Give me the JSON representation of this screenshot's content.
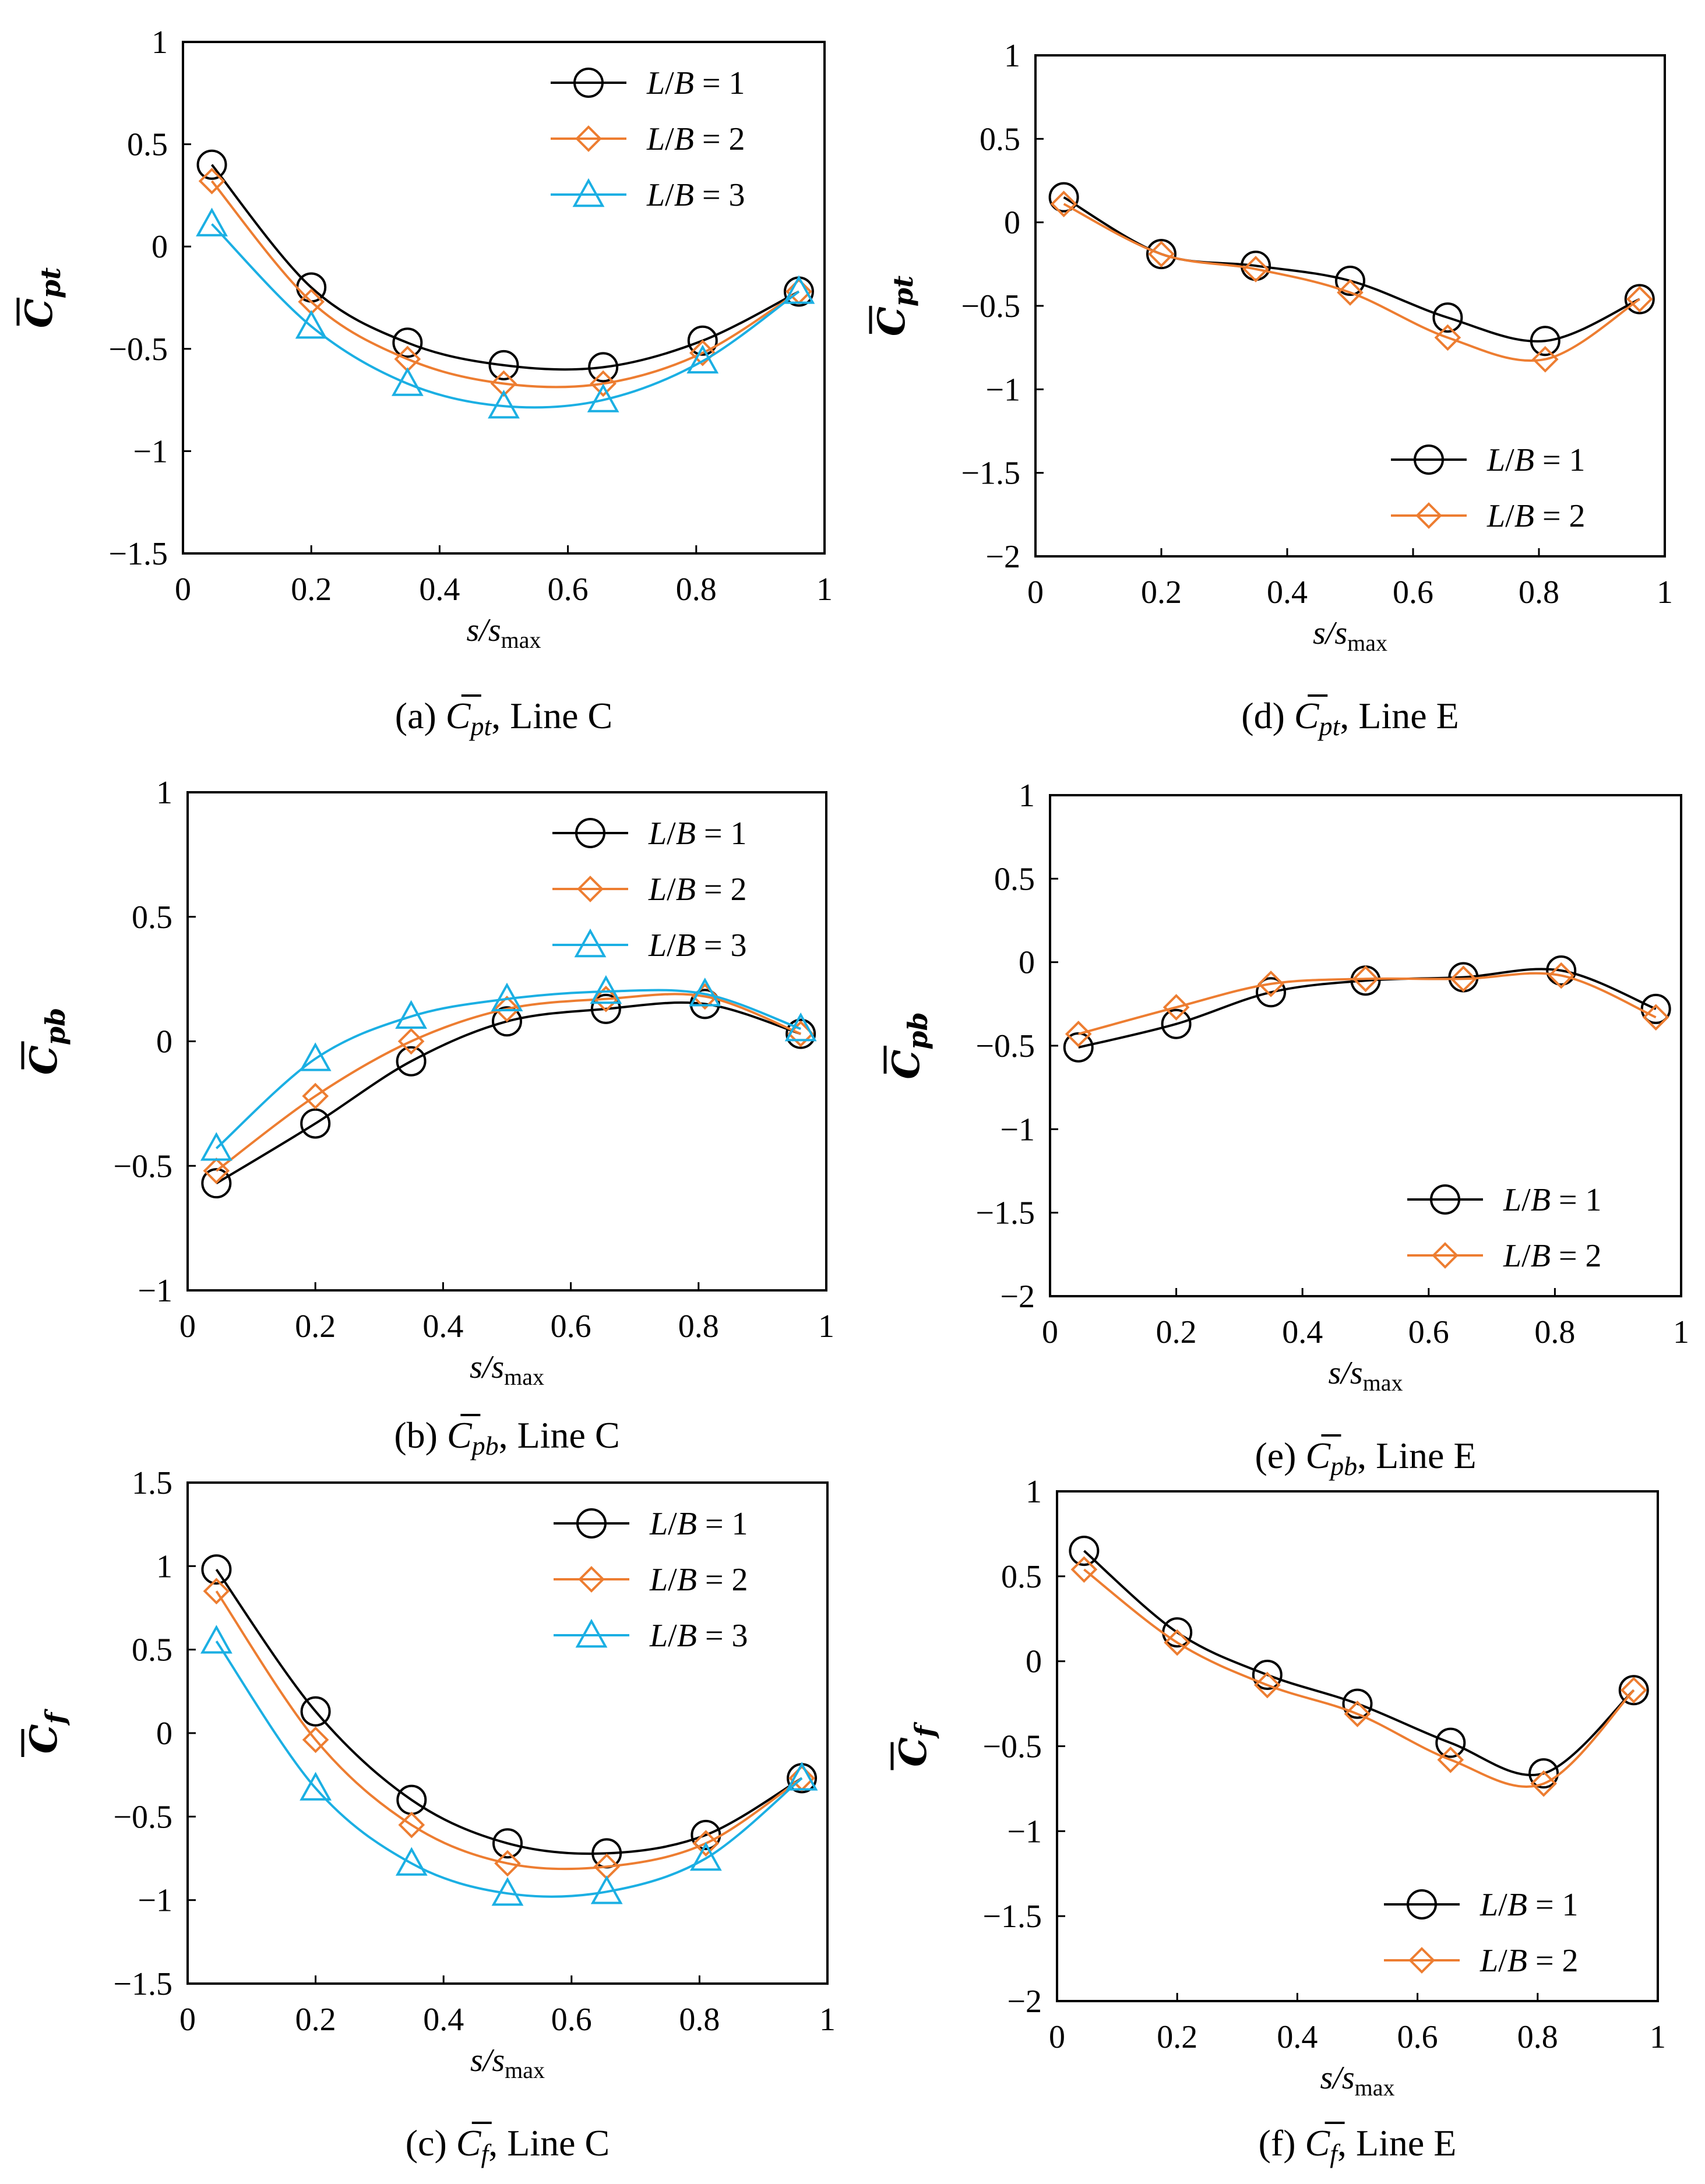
{
  "colors": {
    "lb1": "#000000",
    "lb2": "#ED7D31",
    "lb3": "#1BAFE3"
  },
  "chart_data": [
    {
      "id": "a",
      "type": "line",
      "caption": {
        "prefix": "(a) ",
        "symbol": "C",
        "sub": "pt",
        "suffix": ", Line C"
      },
      "ylabel": {
        "symbol": "C",
        "sub": "pt"
      },
      "xlabel": {
        "main": "s/s",
        "sub": "max"
      },
      "xlim": [
        0,
        1
      ],
      "ylim": [
        -1.5,
        1
      ],
      "xticks": [
        0,
        0.2,
        0.4,
        0.6,
        0.8,
        1
      ],
      "xtick_labels": [
        "0",
        "0.2",
        "0.4",
        "0.6",
        "0.8",
        "1"
      ],
      "yticks": [
        1,
        0.5,
        0,
        -0.5,
        -1,
        -1.5
      ],
      "ytick_labels": [
        "1",
        "0.5",
        "0",
        "−0.5",
        "−1",
        "−1.5"
      ],
      "legend": "top-right",
      "x": [
        0.045,
        0.2,
        0.35,
        0.5,
        0.655,
        0.81,
        0.96
      ],
      "series": [
        {
          "name": "L/B = 1",
          "color": "lb1",
          "marker": "circle",
          "values": [
            0.4,
            -0.2,
            -0.47,
            -0.58,
            -0.59,
            -0.46,
            -0.22
          ]
        },
        {
          "name": "L/B = 2",
          "color": "lb2",
          "marker": "diamond",
          "values": [
            0.32,
            -0.27,
            -0.55,
            -0.67,
            -0.67,
            -0.52,
            -0.22
          ]
        },
        {
          "name": "L/B = 3",
          "color": "lb3",
          "marker": "triangle",
          "values": [
            0.11,
            -0.39,
            -0.67,
            -0.78,
            -0.75,
            -0.56,
            -0.22
          ]
        }
      ]
    },
    {
      "id": "b",
      "type": "line",
      "caption": {
        "prefix": "(b) ",
        "symbol": "C",
        "sub": "pb",
        "suffix": ", Line C"
      },
      "ylabel": {
        "symbol": "C",
        "sub": "pb"
      },
      "xlabel": {
        "main": "s/s",
        "sub": "max"
      },
      "xlim": [
        0,
        1
      ],
      "ylim": [
        -1,
        1
      ],
      "xticks": [
        0,
        0.2,
        0.4,
        0.6,
        0.8,
        1
      ],
      "xtick_labels": [
        "0",
        "0.2",
        "0.4",
        "0.6",
        "0.8",
        "1"
      ],
      "yticks": [
        1,
        0.5,
        0,
        -0.5,
        -1
      ],
      "ytick_labels": [
        "1",
        "0.5",
        "0",
        "−0.5",
        "−1"
      ],
      "legend": "top-right",
      "x": [
        0.045,
        0.2,
        0.35,
        0.5,
        0.655,
        0.81,
        0.96
      ],
      "series": [
        {
          "name": "L/B = 1",
          "color": "lb1",
          "marker": "circle",
          "values": [
            -0.57,
            -0.33,
            -0.08,
            0.08,
            0.13,
            0.15,
            0.03
          ]
        },
        {
          "name": "L/B = 2",
          "color": "lb2",
          "marker": "diamond",
          "values": [
            -0.52,
            -0.22,
            0.0,
            0.13,
            0.17,
            0.18,
            0.03
          ]
        },
        {
          "name": "L/B = 3",
          "color": "lb3",
          "marker": "triangle",
          "values": [
            -0.43,
            -0.07,
            0.1,
            0.17,
            0.2,
            0.19,
            0.05
          ]
        }
      ]
    },
    {
      "id": "c",
      "type": "line",
      "caption": {
        "prefix": "(c) ",
        "symbol": "C",
        "sub": "f",
        "suffix": ", Line C"
      },
      "ylabel": {
        "symbol": "C",
        "sub": "f"
      },
      "xlabel": {
        "main": "s/s",
        "sub": "max"
      },
      "xlim": [
        0,
        1
      ],
      "ylim": [
        -1.5,
        1.5
      ],
      "xticks": [
        0,
        0.2,
        0.4,
        0.6,
        0.8,
        1
      ],
      "xtick_labels": [
        "0",
        "0.2",
        "0.4",
        "0.6",
        "0.8",
        "1"
      ],
      "yticks": [
        1.5,
        1,
        0.5,
        0,
        -0.5,
        -1,
        -1.5
      ],
      "ytick_labels": [
        "1.5",
        "1",
        "0.5",
        "0",
        "−0.5",
        "−1",
        "−1.5"
      ],
      "legend": "top-right",
      "x": [
        0.045,
        0.2,
        0.35,
        0.5,
        0.655,
        0.81,
        0.96
      ],
      "series": [
        {
          "name": "L/B = 1",
          "color": "lb1",
          "marker": "circle",
          "values": [
            0.98,
            0.13,
            -0.4,
            -0.66,
            -0.72,
            -0.61,
            -0.27
          ]
        },
        {
          "name": "L/B = 2",
          "color": "lb2",
          "marker": "diamond",
          "values": [
            0.85,
            -0.04,
            -0.55,
            -0.78,
            -0.8,
            -0.66,
            -0.27
          ]
        },
        {
          "name": "L/B = 3",
          "color": "lb3",
          "marker": "triangle",
          "values": [
            0.55,
            -0.33,
            -0.78,
            -0.96,
            -0.95,
            -0.75,
            -0.27
          ]
        }
      ]
    },
    {
      "id": "d",
      "type": "line",
      "caption": {
        "prefix": "(d) ",
        "symbol": "C",
        "sub": "pt",
        "suffix": ", Line E"
      },
      "ylabel": {
        "symbol": "C",
        "sub": "pt"
      },
      "xlabel": {
        "main": "s/s",
        "sub": "max"
      },
      "xlim": [
        0,
        1
      ],
      "ylim": [
        -2,
        1
      ],
      "xticks": [
        0,
        0.2,
        0.4,
        0.6,
        0.8,
        1
      ],
      "xtick_labels": [
        "0",
        "0.2",
        "0.4",
        "0.6",
        "0.8",
        "1"
      ],
      "yticks": [
        1,
        0.5,
        0,
        -0.5,
        -1,
        -1.5,
        -2
      ],
      "ytick_labels": [
        "1",
        "0.5",
        "0",
        "−0.5",
        "−1",
        "−1.5",
        "−2"
      ],
      "legend": "bottom-right",
      "x": [
        0.045,
        0.2,
        0.35,
        0.5,
        0.655,
        0.81,
        0.96
      ],
      "series": [
        {
          "name": "L/B = 1",
          "color": "lb1",
          "marker": "circle",
          "values": [
            0.15,
            -0.19,
            -0.26,
            -0.35,
            -0.57,
            -0.71,
            -0.46
          ]
        },
        {
          "name": "L/B = 2",
          "color": "lb2",
          "marker": "diamond",
          "values": [
            0.11,
            -0.19,
            -0.28,
            -0.42,
            -0.69,
            -0.82,
            -0.46
          ]
        }
      ]
    },
    {
      "id": "e",
      "type": "line",
      "caption": {
        "prefix": "(e) ",
        "symbol": "C",
        "sub": "pb",
        "suffix": ", Line E"
      },
      "ylabel": {
        "symbol": "C",
        "sub": "pb"
      },
      "xlabel": {
        "main": "s/s",
        "sub": "max"
      },
      "xlim": [
        0,
        1
      ],
      "ylim": [
        -2,
        1
      ],
      "xticks": [
        0,
        0.2,
        0.4,
        0.6,
        0.8,
        1
      ],
      "xtick_labels": [
        "0",
        "0.2",
        "0.4",
        "0.6",
        "0.8",
        "1"
      ],
      "yticks": [
        1,
        0.5,
        0,
        -0.5,
        -1,
        -1.5,
        -2
      ],
      "ytick_labels": [
        "1",
        "0.5",
        "0",
        "−0.5",
        "−1",
        "−1.5",
        "−2"
      ],
      "legend": "bottom-right",
      "x": [
        0.045,
        0.2,
        0.35,
        0.5,
        0.655,
        0.81,
        0.96
      ],
      "series": [
        {
          "name": "L/B = 1",
          "color": "lb1",
          "marker": "circle",
          "values": [
            -0.51,
            -0.37,
            -0.18,
            -0.11,
            -0.09,
            -0.05,
            -0.28
          ]
        },
        {
          "name": "L/B = 2",
          "color": "lb2",
          "marker": "diamond",
          "values": [
            -0.43,
            -0.27,
            -0.13,
            -0.1,
            -0.1,
            -0.08,
            -0.33
          ]
        }
      ]
    },
    {
      "id": "f",
      "type": "line",
      "caption": {
        "prefix": "(f) ",
        "symbol": "C",
        "sub": "f",
        "suffix": ", Line E"
      },
      "ylabel": {
        "symbol": "C",
        "sub": "f"
      },
      "xlabel": {
        "main": "s/s",
        "sub": "max"
      },
      "xlim": [
        0,
        1
      ],
      "ylim": [
        -2,
        1
      ],
      "xticks": [
        0,
        0.2,
        0.4,
        0.6,
        0.8,
        1
      ],
      "xtick_labels": [
        "0",
        "0.2",
        "0.4",
        "0.6",
        "0.8",
        "1"
      ],
      "yticks": [
        1,
        0.5,
        0,
        -0.5,
        -1,
        -1.5,
        -2
      ],
      "ytick_labels": [
        "1",
        "0.5",
        "0",
        "−0.5",
        "−1",
        "−1.5",
        "−2"
      ],
      "legend": "bottom-right",
      "x": [
        0.045,
        0.2,
        0.35,
        0.5,
        0.655,
        0.81,
        0.96
      ],
      "series": [
        {
          "name": "L/B = 1",
          "color": "lb1",
          "marker": "circle",
          "values": [
            0.65,
            0.17,
            -0.08,
            -0.25,
            -0.48,
            -0.66,
            -0.17
          ]
        },
        {
          "name": "L/B = 2",
          "color": "lb2",
          "marker": "diamond",
          "values": [
            0.54,
            0.11,
            -0.14,
            -0.31,
            -0.58,
            -0.72,
            -0.17
          ]
        }
      ]
    }
  ]
}
